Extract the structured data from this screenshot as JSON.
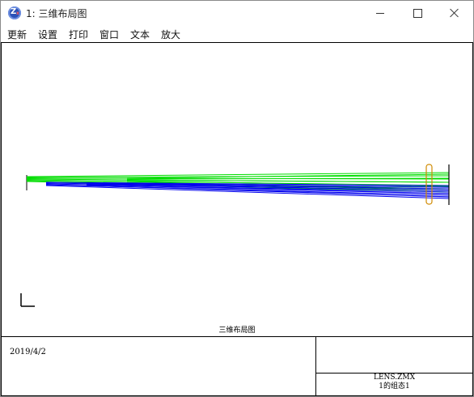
{
  "window": {
    "title": "1: 三维布局图"
  },
  "menu": {
    "items": [
      "更新",
      "设置",
      "打印",
      "窗口",
      "文本",
      "放大"
    ]
  },
  "plot": {
    "colors": {
      "green": "#00dd00",
      "blue": "#0000ee",
      "lens": "#d08a00",
      "axes": "#000000"
    }
  },
  "footer": {
    "caption": "三维布局图",
    "date": "2019/4/2",
    "file": "LENS.ZMX",
    "config": "1的组态1"
  }
}
